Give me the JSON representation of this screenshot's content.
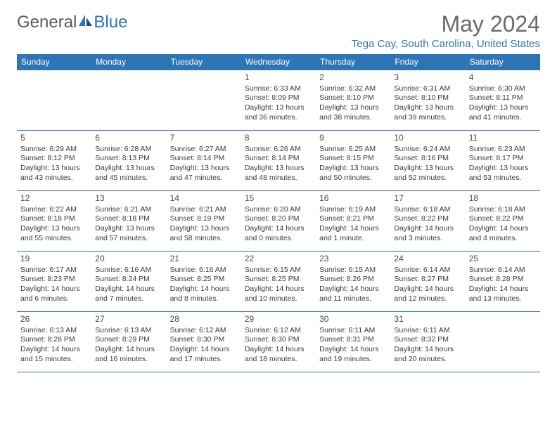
{
  "logo": {
    "part1": "General",
    "part2": "Blue"
  },
  "title": "May 2024",
  "location": "Tega Cay, South Carolina, United States",
  "calendar": {
    "day_headers": [
      "Sunday",
      "Monday",
      "Tuesday",
      "Wednesday",
      "Thursday",
      "Friday",
      "Saturday"
    ],
    "header_bg": "#2e75b6",
    "header_fg": "#ffffff",
    "border_color": "#2e75b6",
    "cell_font_size": 10.5,
    "first_weekday": 3,
    "days": [
      {
        "n": 1,
        "sr": "6:33 AM",
        "ss": "8:09 PM",
        "dl": "13 hours and 36 minutes"
      },
      {
        "n": 2,
        "sr": "6:32 AM",
        "ss": "8:10 PM",
        "dl": "13 hours and 38 minutes"
      },
      {
        "n": 3,
        "sr": "6:31 AM",
        "ss": "8:10 PM",
        "dl": "13 hours and 39 minutes"
      },
      {
        "n": 4,
        "sr": "6:30 AM",
        "ss": "8:11 PM",
        "dl": "13 hours and 41 minutes"
      },
      {
        "n": 5,
        "sr": "6:29 AM",
        "ss": "8:12 PM",
        "dl": "13 hours and 43 minutes"
      },
      {
        "n": 6,
        "sr": "6:28 AM",
        "ss": "8:13 PM",
        "dl": "13 hours and 45 minutes"
      },
      {
        "n": 7,
        "sr": "6:27 AM",
        "ss": "8:14 PM",
        "dl": "13 hours and 47 minutes"
      },
      {
        "n": 8,
        "sr": "6:26 AM",
        "ss": "8:14 PM",
        "dl": "13 hours and 48 minutes"
      },
      {
        "n": 9,
        "sr": "6:25 AM",
        "ss": "8:15 PM",
        "dl": "13 hours and 50 minutes"
      },
      {
        "n": 10,
        "sr": "6:24 AM",
        "ss": "8:16 PM",
        "dl": "13 hours and 52 minutes"
      },
      {
        "n": 11,
        "sr": "6:23 AM",
        "ss": "8:17 PM",
        "dl": "13 hours and 53 minutes"
      },
      {
        "n": 12,
        "sr": "6:22 AM",
        "ss": "8:18 PM",
        "dl": "13 hours and 55 minutes"
      },
      {
        "n": 13,
        "sr": "6:21 AM",
        "ss": "8:18 PM",
        "dl": "13 hours and 57 minutes"
      },
      {
        "n": 14,
        "sr": "6:21 AM",
        "ss": "8:19 PM",
        "dl": "13 hours and 58 minutes"
      },
      {
        "n": 15,
        "sr": "6:20 AM",
        "ss": "8:20 PM",
        "dl": "14 hours and 0 minutes"
      },
      {
        "n": 16,
        "sr": "6:19 AM",
        "ss": "8:21 PM",
        "dl": "14 hours and 1 minute"
      },
      {
        "n": 17,
        "sr": "6:18 AM",
        "ss": "8:22 PM",
        "dl": "14 hours and 3 minutes"
      },
      {
        "n": 18,
        "sr": "6:18 AM",
        "ss": "8:22 PM",
        "dl": "14 hours and 4 minutes"
      },
      {
        "n": 19,
        "sr": "6:17 AM",
        "ss": "8:23 PM",
        "dl": "14 hours and 6 minutes"
      },
      {
        "n": 20,
        "sr": "6:16 AM",
        "ss": "8:24 PM",
        "dl": "14 hours and 7 minutes"
      },
      {
        "n": 21,
        "sr": "6:16 AM",
        "ss": "8:25 PM",
        "dl": "14 hours and 8 minutes"
      },
      {
        "n": 22,
        "sr": "6:15 AM",
        "ss": "8:25 PM",
        "dl": "14 hours and 10 minutes"
      },
      {
        "n": 23,
        "sr": "6:15 AM",
        "ss": "8:26 PM",
        "dl": "14 hours and 11 minutes"
      },
      {
        "n": 24,
        "sr": "6:14 AM",
        "ss": "8:27 PM",
        "dl": "14 hours and 12 minutes"
      },
      {
        "n": 25,
        "sr": "6:14 AM",
        "ss": "8:28 PM",
        "dl": "14 hours and 13 minutes"
      },
      {
        "n": 26,
        "sr": "6:13 AM",
        "ss": "8:28 PM",
        "dl": "14 hours and 15 minutes"
      },
      {
        "n": 27,
        "sr": "6:13 AM",
        "ss": "8:29 PM",
        "dl": "14 hours and 16 minutes"
      },
      {
        "n": 28,
        "sr": "6:12 AM",
        "ss": "8:30 PM",
        "dl": "14 hours and 17 minutes"
      },
      {
        "n": 29,
        "sr": "6:12 AM",
        "ss": "8:30 PM",
        "dl": "14 hours and 18 minutes"
      },
      {
        "n": 30,
        "sr": "6:11 AM",
        "ss": "8:31 PM",
        "dl": "14 hours and 19 minutes"
      },
      {
        "n": 31,
        "sr": "6:11 AM",
        "ss": "8:32 PM",
        "dl": "14 hours and 20 minutes"
      }
    ]
  }
}
